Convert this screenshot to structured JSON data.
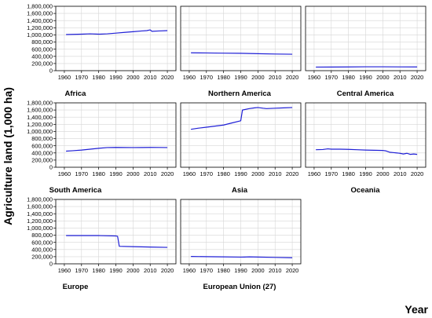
{
  "figure": {
    "ylabel": "Agriculture land (1,000 ha)",
    "xlabel": "Year"
  },
  "chart_data": [
    {
      "type": "line",
      "title": "Africa",
      "ylim": [
        0,
        1800000
      ],
      "yticks": [
        0,
        200000,
        400000,
        600000,
        800000,
        1000000,
        1200000,
        1400000,
        1600000,
        1800000
      ],
      "yticklabels": [
        "0",
        "200,000",
        "400,000",
        "600,000",
        "800,000",
        "1,000,000",
        "1,200,000",
        "1,400,000",
        "1,600,000",
        "1,800,000"
      ],
      "xlim": [
        1955,
        2025
      ],
      "xticks": [
        1960,
        1970,
        1980,
        1990,
        2000,
        2010,
        2020
      ],
      "xticklabels": [
        "1960",
        "1970",
        "1980",
        "1990",
        "2000",
        "2010",
        "2020"
      ],
      "grid": true,
      "color": "#1f1fd6",
      "series": [
        {
          "x": [
            1961,
            1970,
            1975,
            1980,
            1985,
            1990,
            1995,
            2000,
            2005,
            2008,
            2010,
            2011,
            2015,
            2020
          ],
          "y": [
            1010000,
            1020000,
            1030000,
            1020000,
            1030000,
            1050000,
            1070000,
            1090000,
            1110000,
            1120000,
            1140000,
            1100000,
            1110000,
            1120000
          ]
        }
      ]
    },
    {
      "type": "line",
      "title": "Northern America",
      "ylim": [
        0,
        1800000
      ],
      "xlim": [
        1955,
        2025
      ],
      "xticks": [
        1960,
        1970,
        1980,
        1990,
        2000,
        2010,
        2020
      ],
      "xticklabels": [
        "1960",
        "1970",
        "1980",
        "1990",
        "2000",
        "2010",
        "2020"
      ],
      "grid": true,
      "color": "#1f1fd6",
      "series": [
        {
          "x": [
            1961,
            1970,
            1980,
            1990,
            2000,
            2010,
            2020
          ],
          "y": [
            500000,
            495000,
            490000,
            485000,
            475000,
            465000,
            460000
          ]
        }
      ]
    },
    {
      "type": "line",
      "title": "Central America",
      "ylim": [
        0,
        1800000
      ],
      "xlim": [
        1955,
        2025
      ],
      "xticks": [
        1960,
        1970,
        1980,
        1990,
        2000,
        2010,
        2020
      ],
      "xticklabels": [
        "1960",
        "1970",
        "1980",
        "1990",
        "2000",
        "2010",
        "2020"
      ],
      "grid": true,
      "color": "#1f1fd6",
      "series": [
        {
          "x": [
            1961,
            1970,
            1980,
            1990,
            2000,
            2010,
            2020
          ],
          "y": [
            100000,
            102000,
            105000,
            108000,
            108000,
            106000,
            104000
          ]
        }
      ]
    },
    {
      "type": "line",
      "title": "South America",
      "ylim": [
        0,
        1800000
      ],
      "yticks": [
        0,
        200000,
        400000,
        600000,
        800000,
        1000000,
        1200000,
        1400000,
        1600000,
        1800000
      ],
      "yticklabels": [
        "0",
        "200,000",
        "400,000",
        "600,000",
        "800,000",
        "1,000,000",
        "1,200,000",
        "1,400,000",
        "1,600,000",
        "1,800,000"
      ],
      "xlim": [
        1955,
        2025
      ],
      "xticks": [
        1960,
        1970,
        1980,
        1990,
        2000,
        2010,
        2020
      ],
      "xticklabels": [
        "1960",
        "1970",
        "1980",
        "1990",
        "2000",
        "2010",
        "2020"
      ],
      "grid": true,
      "color": "#1f1fd6",
      "series": [
        {
          "x": [
            1961,
            1965,
            1970,
            1975,
            1980,
            1985,
            1990,
            1995,
            2000,
            2005,
            2010,
            2015,
            2020
          ],
          "y": [
            450000,
            462000,
            480000,
            505000,
            530000,
            550000,
            555000,
            552000,
            550000,
            552000,
            555000,
            553000,
            550000
          ]
        }
      ]
    },
    {
      "type": "line",
      "title": "Asia",
      "ylim": [
        0,
        1800000
      ],
      "xlim": [
        1955,
        2025
      ],
      "xticks": [
        1960,
        1970,
        1980,
        1990,
        2000,
        2010,
        2020
      ],
      "xticklabels": [
        "1960",
        "1970",
        "1980",
        "1990",
        "2000",
        "2010",
        "2020"
      ],
      "grid": true,
      "color": "#1f1fd6",
      "series": [
        {
          "x": [
            1961,
            1965,
            1970,
            1975,
            1980,
            1985,
            1990,
            1991,
            1995,
            1998,
            2000,
            2003,
            2005,
            2010,
            2015,
            2020
          ],
          "y": [
            1060000,
            1090000,
            1120000,
            1150000,
            1180000,
            1240000,
            1300000,
            1600000,
            1640000,
            1660000,
            1670000,
            1650000,
            1640000,
            1650000,
            1660000,
            1670000
          ]
        }
      ]
    },
    {
      "type": "line",
      "title": "Oceania",
      "ylim": [
        0,
        1800000
      ],
      "xlim": [
        1955,
        2025
      ],
      "xticks": [
        1960,
        1970,
        1980,
        1990,
        2000,
        2010,
        2020
      ],
      "xticklabels": [
        "1960",
        "1970",
        "1980",
        "1990",
        "2000",
        "2010",
        "2020"
      ],
      "grid": true,
      "color": "#1f1fd6",
      "series": [
        {
          "x": [
            1961,
            1965,
            1968,
            1970,
            1975,
            1980,
            1985,
            1990,
            1995,
            2000,
            2002,
            2004,
            2006,
            2008,
            2010,
            2012,
            2014,
            2016,
            2018,
            2020
          ],
          "y": [
            490000,
            495000,
            515000,
            505000,
            505000,
            500000,
            490000,
            480000,
            475000,
            470000,
            455000,
            420000,
            410000,
            400000,
            390000,
            370000,
            390000,
            360000,
            370000,
            360000
          ]
        }
      ]
    },
    {
      "type": "line",
      "title": "Europe",
      "ylim": [
        0,
        1800000
      ],
      "yticks": [
        0,
        200000,
        400000,
        600000,
        800000,
        1000000,
        1200000,
        1400000,
        1600000,
        1800000
      ],
      "yticklabels": [
        "0",
        "200,000",
        "400,000",
        "600,000",
        "800,000",
        "1,000,000",
        "1,200,000",
        "1,400,000",
        "1,600,000",
        "1,800,000"
      ],
      "xlim": [
        1955,
        2025
      ],
      "xticks": [
        1960,
        1970,
        1980,
        1990,
        2000,
        2010,
        2020
      ],
      "xticklabels": [
        "1960",
        "1970",
        "1980",
        "1990",
        "2000",
        "2010",
        "2020"
      ],
      "grid": true,
      "color": "#1f1fd6",
      "series": [
        {
          "x": [
            1961,
            1970,
            1980,
            1990,
            1991,
            1992,
            2000,
            2010,
            2020
          ],
          "y": [
            790000,
            790000,
            790000,
            780000,
            770000,
            490000,
            480000,
            470000,
            460000
          ]
        }
      ]
    },
    {
      "type": "line",
      "title": "European Union (27)",
      "ylim": [
        0,
        1800000
      ],
      "xlim": [
        1955,
        2025
      ],
      "xticks": [
        1960,
        1970,
        1980,
        1990,
        2000,
        2010,
        2020
      ],
      "xticklabels": [
        "1960",
        "1970",
        "1980",
        "1990",
        "2000",
        "2010",
        "2020"
      ],
      "grid": true,
      "color": "#1f1fd6",
      "series": [
        {
          "x": [
            1961,
            1970,
            1980,
            1990,
            1992,
            1995,
            2000,
            2010,
            2020
          ],
          "y": [
            205000,
            200000,
            195000,
            188000,
            190000,
            195000,
            190000,
            180000,
            170000
          ]
        }
      ]
    }
  ]
}
